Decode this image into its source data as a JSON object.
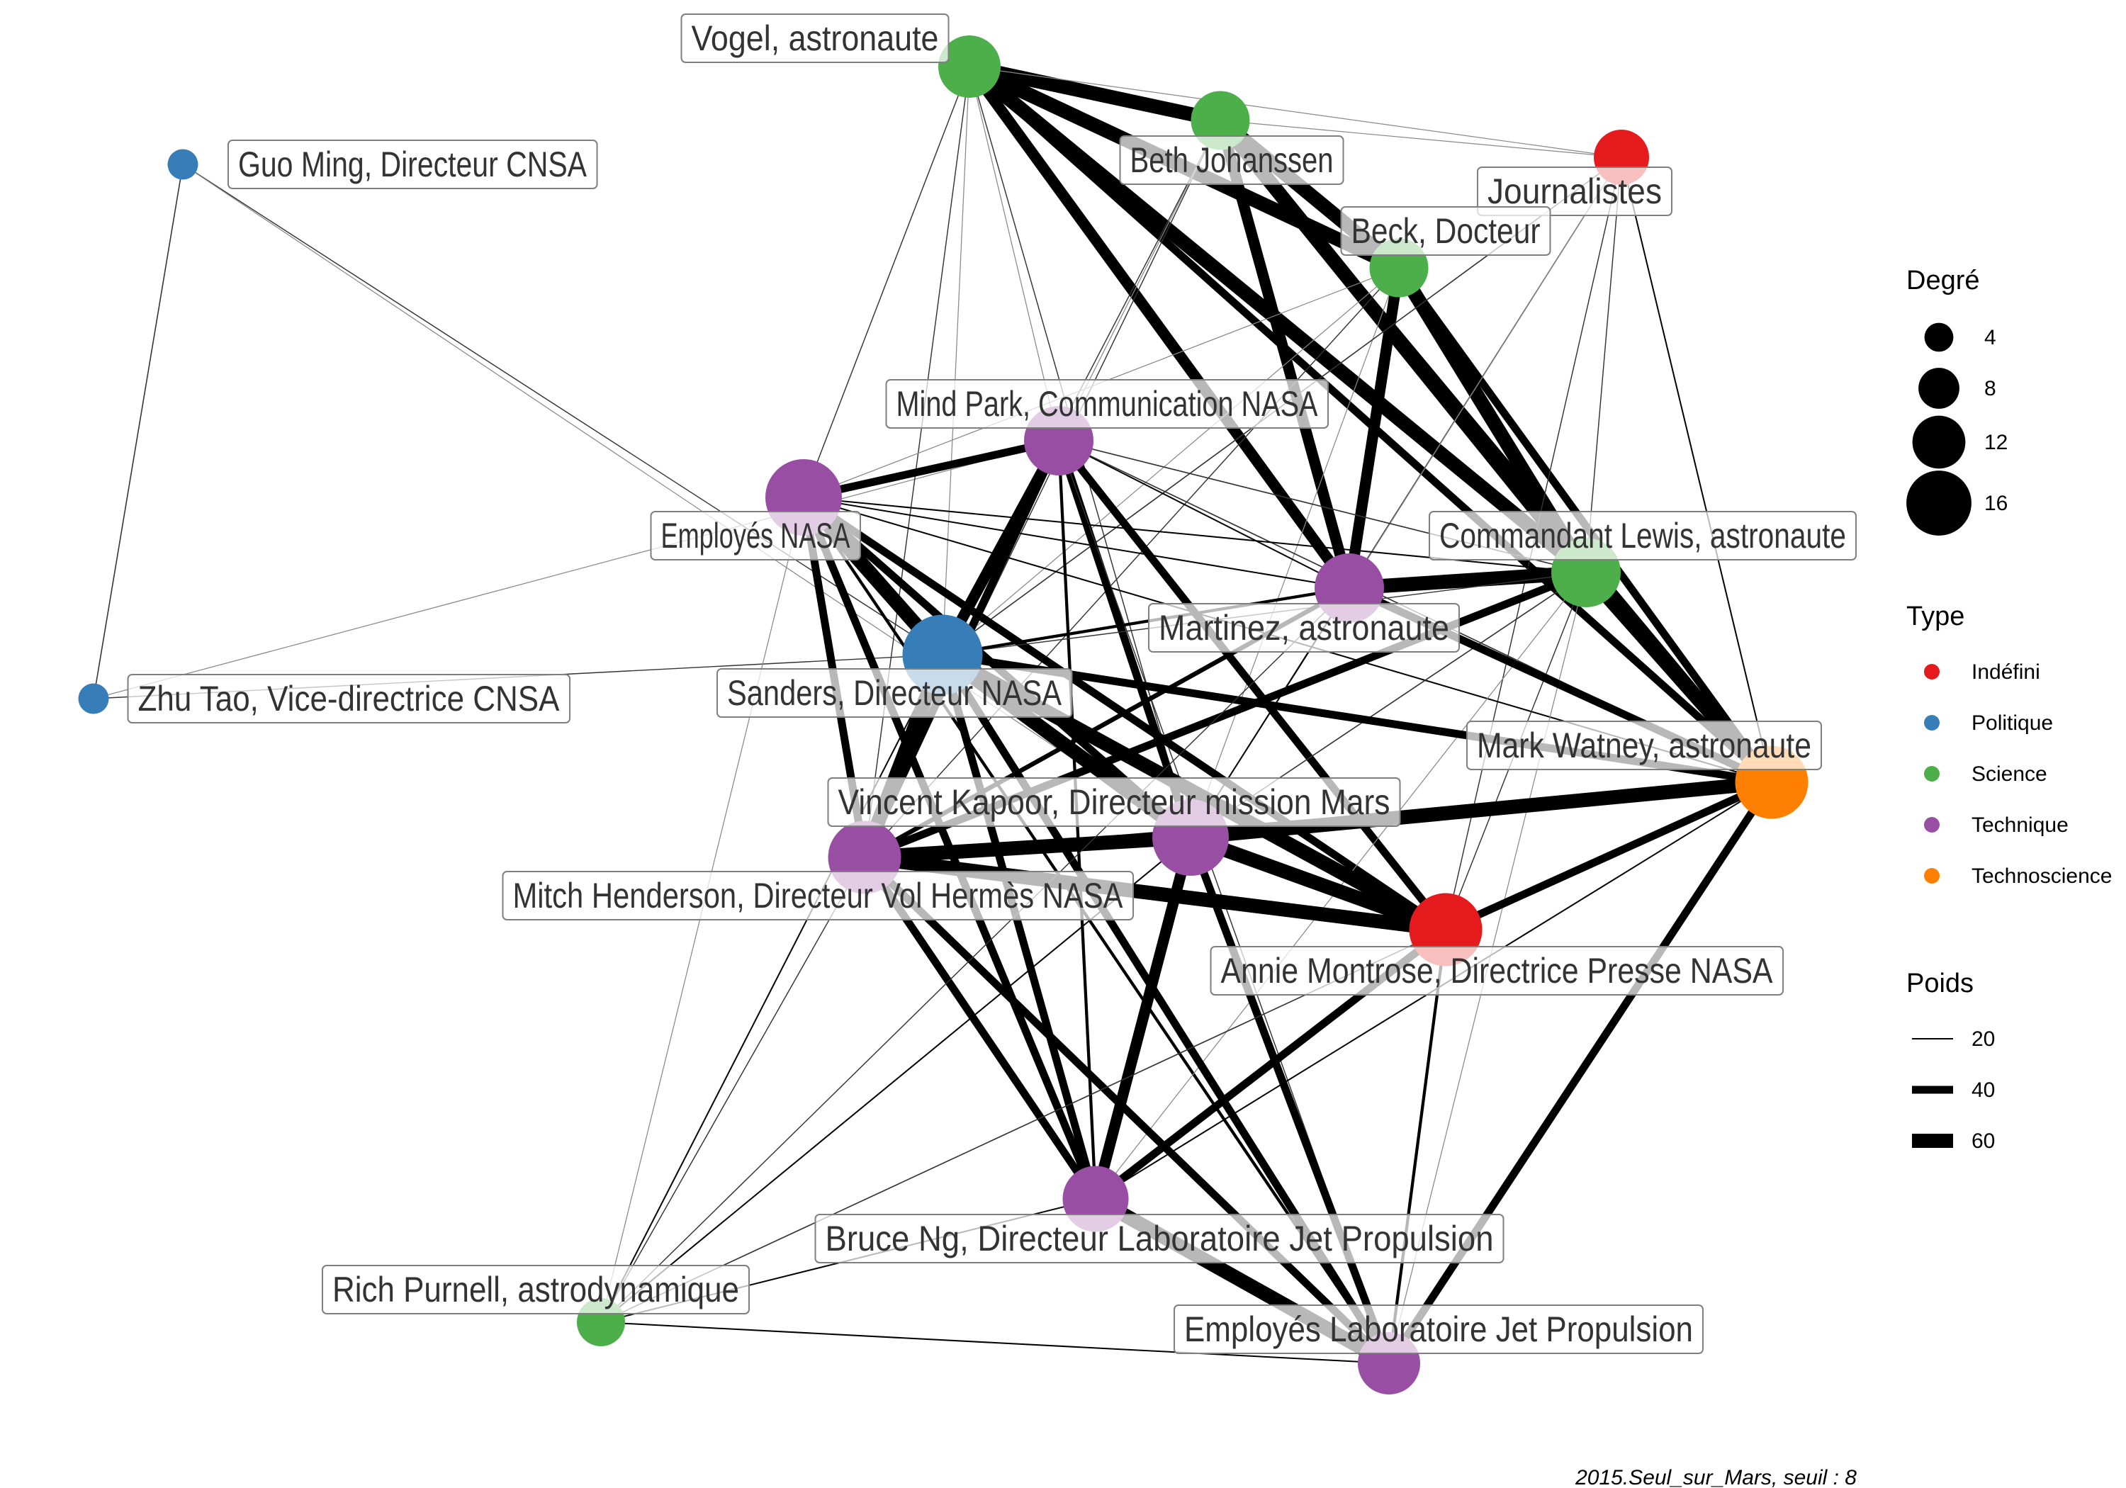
{
  "colors": {
    "Indéfini": "#e41a1c",
    "Politique": "#377eb8",
    "Science": "#4daf4a",
    "Technique": "#984ea3",
    "Technoscience": "#ff7f00"
  },
  "nodes": [
    {
      "id": "vogel",
      "label": "Vogel, astronaute",
      "type": "Science",
      "degree": 12
    },
    {
      "id": "beth",
      "label": "Beth Johanssen",
      "type": "Science",
      "degree": 11
    },
    {
      "id": "journalistes",
      "label": "Journalistes",
      "type": "Indéfini",
      "degree": 10
    },
    {
      "id": "beck",
      "label": "Beck, Docteur",
      "type": "Science",
      "degree": 11
    },
    {
      "id": "guo",
      "label": "Guo Ming, Directeur CNSA",
      "type": "Politique",
      "degree": 3
    },
    {
      "id": "mindpark",
      "label": "Mind Park, Communication NASA",
      "type": "Technique",
      "degree": 14
    },
    {
      "id": "employes_nasa",
      "label": "Employés NASA",
      "type": "Technique",
      "degree": 16
    },
    {
      "id": "lewis",
      "label": "Commandant Lewis, astronaute",
      "type": "Science",
      "degree": 14
    },
    {
      "id": "martinez",
      "label": "Martinez, astronaute",
      "type": "Technique",
      "degree": 14
    },
    {
      "id": "sanders",
      "label": "Sanders, Directeur NASA",
      "type": "Politique",
      "degree": 17
    },
    {
      "id": "zhu",
      "label": "Zhu Tao, Vice-directrice CNSA",
      "type": "Politique",
      "degree": 3
    },
    {
      "id": "watney",
      "label": "Mark Watney, astronaute",
      "type": "Technoscience",
      "degree": 15
    },
    {
      "id": "kapoor",
      "label": "Vincent Kapoor, Directeur mission Mars",
      "type": "Technique",
      "degree": 16
    },
    {
      "id": "henderson",
      "label": "Mitch Henderson, Directeur Vol Hermès NASA",
      "type": "Technique",
      "degree": 15
    },
    {
      "id": "montrose",
      "label": "Annie Montrose, Directrice Presse NASA",
      "type": "Indéfini",
      "degree": 15
    },
    {
      "id": "ng",
      "label": "Bruce Ng, Directeur Laboratoire Jet Propulsion",
      "type": "Technique",
      "degree": 13
    },
    {
      "id": "purnell",
      "label": "Rich Purnell, astrodynamique",
      "type": "Science",
      "degree": 8
    },
    {
      "id": "jpl",
      "label": "Employés Laboratoire Jet Propulsion",
      "type": "Technique",
      "degree": 12
    }
  ],
  "edges": [
    {
      "s": "guo",
      "t": "zhu",
      "w": 14
    },
    {
      "s": "guo",
      "t": "sanders",
      "w": 12
    },
    {
      "s": "guo",
      "t": "kapoor",
      "w": 9
    },
    {
      "s": "zhu",
      "t": "sanders",
      "w": 12
    },
    {
      "s": "zhu",
      "t": "mindpark",
      "w": 9
    },
    {
      "s": "vogel",
      "t": "beth",
      "w": 60
    },
    {
      "s": "vogel",
      "t": "beck",
      "w": 60
    },
    {
      "s": "vogel",
      "t": "lewis",
      "w": 60
    },
    {
      "s": "vogel",
      "t": "watney",
      "w": 40
    },
    {
      "s": "vogel",
      "t": "martinez",
      "w": 50
    },
    {
      "s": "vogel",
      "t": "journalistes",
      "w": 9
    },
    {
      "s": "vogel",
      "t": "employes_nasa",
      "w": 12
    },
    {
      "s": "vogel",
      "t": "kapoor",
      "w": 12
    },
    {
      "s": "vogel",
      "t": "henderson",
      "w": 12
    },
    {
      "s": "vogel",
      "t": "sanders",
      "w": 9
    },
    {
      "s": "vogel",
      "t": "mindpark",
      "w": 9
    },
    {
      "s": "beth",
      "t": "beck",
      "w": 60
    },
    {
      "s": "beth",
      "t": "lewis",
      "w": 60
    },
    {
      "s": "beth",
      "t": "martinez",
      "w": 50
    },
    {
      "s": "beth",
      "t": "watney",
      "w": 40
    },
    {
      "s": "beth",
      "t": "journalistes",
      "w": 9
    },
    {
      "s": "beth",
      "t": "henderson",
      "w": 12
    },
    {
      "s": "beth",
      "t": "sanders",
      "w": 12
    },
    {
      "s": "beth",
      "t": "mindpark",
      "w": 9
    },
    {
      "s": "beck",
      "t": "lewis",
      "w": 60
    },
    {
      "s": "beck",
      "t": "martinez",
      "w": 50
    },
    {
      "s": "beck",
      "t": "watney",
      "w": 40
    },
    {
      "s": "beck",
      "t": "henderson",
      "w": 12
    },
    {
      "s": "beck",
      "t": "employes_nasa",
      "w": 9
    },
    {
      "s": "beck",
      "t": "kapoor",
      "w": 9
    },
    {
      "s": "beck",
      "t": "sanders",
      "w": 9
    },
    {
      "s": "journalistes",
      "t": "watney",
      "w": 20
    },
    {
      "s": "journalistes",
      "t": "montrose",
      "w": 12
    },
    {
      "s": "journalistes",
      "t": "sanders",
      "w": 15
    },
    {
      "s": "journalistes",
      "t": "kapoor",
      "w": 12
    },
    {
      "s": "journalistes",
      "t": "lewis",
      "w": 12
    },
    {
      "s": "journalistes",
      "t": "martinez",
      "w": 9
    },
    {
      "s": "mindpark",
      "t": "employes_nasa",
      "w": 40
    },
    {
      "s": "mindpark",
      "t": "sanders",
      "w": 50
    },
    {
      "s": "mindpark",
      "t": "kapoor",
      "w": 40
    },
    {
      "s": "mindpark",
      "t": "henderson",
      "w": 40
    },
    {
      "s": "mindpark",
      "t": "montrose",
      "w": 40
    },
    {
      "s": "mindpark",
      "t": "martinez",
      "w": 20
    },
    {
      "s": "mindpark",
      "t": "lewis",
      "w": 15
    },
    {
      "s": "mindpark",
      "t": "watney",
      "w": 15
    },
    {
      "s": "mindpark",
      "t": "ng",
      "w": 25
    },
    {
      "s": "mindpark",
      "t": "jpl",
      "w": 12
    },
    {
      "s": "employes_nasa",
      "t": "sanders",
      "w": 60
    },
    {
      "s": "employes_nasa",
      "t": "kapoor",
      "w": 40
    },
    {
      "s": "employes_nasa",
      "t": "henderson",
      "w": 40
    },
    {
      "s": "employes_nasa",
      "t": "montrose",
      "w": 40
    },
    {
      "s": "employes_nasa",
      "t": "martinez",
      "w": 20
    },
    {
      "s": "employes_nasa",
      "t": "lewis",
      "w": 20
    },
    {
      "s": "employes_nasa",
      "t": "watney",
      "w": 20
    },
    {
      "s": "employes_nasa",
      "t": "ng",
      "w": 40
    },
    {
      "s": "employes_nasa",
      "t": "jpl",
      "w": 25
    },
    {
      "s": "employes_nasa",
      "t": "purnell",
      "w": 9
    },
    {
      "s": "lewis",
      "t": "martinez",
      "w": 60
    },
    {
      "s": "lewis",
      "t": "watney",
      "w": 60
    },
    {
      "s": "lewis",
      "t": "henderson",
      "w": 40
    },
    {
      "s": "lewis",
      "t": "sanders",
      "w": 12
    },
    {
      "s": "lewis",
      "t": "kapoor",
      "w": 15
    },
    {
      "s": "lewis",
      "t": "montrose",
      "w": 12
    },
    {
      "s": "lewis",
      "t": "ng",
      "w": 9
    },
    {
      "s": "lewis",
      "t": "jpl",
      "w": 9
    },
    {
      "s": "martinez",
      "t": "watney",
      "w": 40
    },
    {
      "s": "martinez",
      "t": "sanders",
      "w": 25
    },
    {
      "s": "martinez",
      "t": "henderson",
      "w": 30
    },
    {
      "s": "martinez",
      "t": "kapoor",
      "w": 20
    },
    {
      "s": "sanders",
      "t": "kapoor",
      "w": 60
    },
    {
      "s": "sanders",
      "t": "henderson",
      "w": 60
    },
    {
      "s": "sanders",
      "t": "montrose",
      "w": 60
    },
    {
      "s": "sanders",
      "t": "watney",
      "w": 40
    },
    {
      "s": "sanders",
      "t": "ng",
      "w": 40
    },
    {
      "s": "sanders",
      "t": "jpl",
      "w": 40
    },
    {
      "s": "sanders",
      "t": "purnell",
      "w": 20
    },
    {
      "s": "watney",
      "t": "kapoor",
      "w": 60
    },
    {
      "s": "watney",
      "t": "montrose",
      "w": 40
    },
    {
      "s": "watney",
      "t": "jpl",
      "w": 40
    },
    {
      "s": "watney",
      "t": "ng",
      "w": 20
    },
    {
      "s": "watney",
      "t": "henderson",
      "w": 25
    },
    {
      "s": "kapoor",
      "t": "henderson",
      "w": 60
    },
    {
      "s": "kapoor",
      "t": "montrose",
      "w": 60
    },
    {
      "s": "kapoor",
      "t": "ng",
      "w": 50
    },
    {
      "s": "kapoor",
      "t": "jpl",
      "w": 40
    },
    {
      "s": "kapoor",
      "t": "purnell",
      "w": 20
    },
    {
      "s": "henderson",
      "t": "montrose",
      "w": 60
    },
    {
      "s": "henderson",
      "t": "ng",
      "w": 40
    },
    {
      "s": "henderson",
      "t": "jpl",
      "w": 40
    },
    {
      "s": "henderson",
      "t": "purnell",
      "w": 12
    },
    {
      "s": "montrose",
      "t": "ng",
      "w": 40
    },
    {
      "s": "montrose",
      "t": "jpl",
      "w": 25
    },
    {
      "s": "montrose",
      "t": "purnell",
      "w": 15
    },
    {
      "s": "ng",
      "t": "jpl",
      "w": 60
    },
    {
      "s": "ng",
      "t": "purnell",
      "w": 20
    },
    {
      "s": "purnell",
      "t": "jpl",
      "w": 20
    },
    {
      "s": "purnell",
      "t": "martinez",
      "w": 12
    }
  ],
  "legend": {
    "degree_title": "Degré",
    "degree_items": [
      {
        "label": "4",
        "value": 4
      },
      {
        "label": "8",
        "value": 8
      },
      {
        "label": "12",
        "value": 12
      },
      {
        "label": "16",
        "value": 16
      }
    ],
    "type_title": "Type",
    "type_items": [
      {
        "label": "Indéfini",
        "type": "Indéfini"
      },
      {
        "label": "Politique",
        "type": "Politique"
      },
      {
        "label": "Science",
        "type": "Science"
      },
      {
        "label": "Technique",
        "type": "Technique"
      },
      {
        "label": "Technoscience",
        "type": "Technoscience"
      }
    ],
    "weight_title": "Poids",
    "weight_items": [
      {
        "label": "20",
        "value": 20
      },
      {
        "label": "40",
        "value": 40
      },
      {
        "label": "60",
        "value": 60
      }
    ]
  },
  "caption": "2015.Seul_sur_Mars, seuil : 8"
}
